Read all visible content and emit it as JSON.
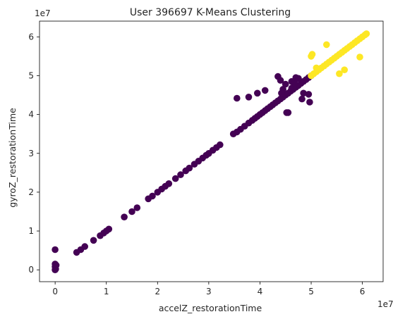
{
  "chart_data": {
    "type": "scatter",
    "title": "User 396697 K-Means Clustering",
    "xlabel": "accelZ_restorationTime",
    "ylabel": "gyroZ_restorationTime",
    "x_offset_label": "1e7",
    "y_offset_label": "1e7",
    "xlim": [
      -0.305,
      6.405
    ],
    "ylim": [
      -0.305,
      6.405
    ],
    "xticks": [
      0,
      1,
      2,
      3,
      4,
      5,
      6
    ],
    "yticks": [
      0,
      1,
      2,
      3,
      4,
      5,
      6
    ],
    "grid": false,
    "units_scale": "1e7",
    "series": [
      {
        "color": "#440154",
        "points": [
          [
            0,
            0
          ],
          [
            0.01,
            0.02
          ],
          [
            0.0,
            0.08
          ],
          [
            0.02,
            0.12
          ],
          [
            0.0,
            0.15
          ],
          [
            0.0,
            0.52
          ],
          [
            0.42,
            0.45
          ],
          [
            0.5,
            0.52
          ],
          [
            0.58,
            0.6
          ],
          [
            0.75,
            0.76
          ],
          [
            0.88,
            0.88
          ],
          [
            0.95,
            0.95
          ],
          [
            1.0,
            1.0
          ],
          [
            1.05,
            1.05
          ],
          [
            1.35,
            1.36
          ],
          [
            1.5,
            1.5
          ],
          [
            1.6,
            1.6
          ],
          [
            1.82,
            1.83
          ],
          [
            1.9,
            1.9
          ],
          [
            2.0,
            2.0
          ],
          [
            2.08,
            2.08
          ],
          [
            2.15,
            2.15
          ],
          [
            2.22,
            2.22
          ],
          [
            2.35,
            2.35
          ],
          [
            2.45,
            2.45
          ],
          [
            2.55,
            2.55
          ],
          [
            2.62,
            2.62
          ],
          [
            2.72,
            2.72
          ],
          [
            2.8,
            2.8
          ],
          [
            2.88,
            2.88
          ],
          [
            2.95,
            2.95
          ],
          [
            3.0,
            3.0
          ],
          [
            3.08,
            3.08
          ],
          [
            3.15,
            3.15
          ],
          [
            3.22,
            3.22
          ],
          [
            3.48,
            3.5
          ],
          [
            3.55,
            3.55
          ],
          [
            3.62,
            3.62
          ],
          [
            3.7,
            3.7
          ],
          [
            3.78,
            3.78
          ],
          [
            3.85,
            3.85
          ],
          [
            3.9,
            3.9
          ],
          [
            3.95,
            3.95
          ],
          [
            4.0,
            4.0
          ],
          [
            4.05,
            4.05
          ],
          [
            4.1,
            4.1
          ],
          [
            4.15,
            4.15
          ],
          [
            4.2,
            4.2
          ],
          [
            4.25,
            4.25
          ],
          [
            4.3,
            4.3
          ],
          [
            4.35,
            4.35
          ],
          [
            4.4,
            4.4
          ],
          [
            4.45,
            4.45
          ],
          [
            4.5,
            4.5
          ],
          [
            4.55,
            4.55
          ],
          [
            4.6,
            4.6
          ],
          [
            4.65,
            4.65
          ],
          [
            4.7,
            4.7
          ],
          [
            4.75,
            4.75
          ],
          [
            4.8,
            4.8
          ],
          [
            4.85,
            4.85
          ],
          [
            4.9,
            4.9
          ],
          [
            4.95,
            4.95
          ],
          [
            5.0,
            5.0
          ],
          [
            3.55,
            4.42
          ],
          [
            3.78,
            4.45
          ],
          [
            3.95,
            4.55
          ],
          [
            4.1,
            4.62
          ],
          [
            4.35,
            4.98
          ],
          [
            4.4,
            4.88
          ],
          [
            4.42,
            4.55
          ],
          [
            4.45,
            4.65
          ],
          [
            4.5,
            4.78
          ],
          [
            4.52,
            4.05
          ],
          [
            4.55,
            4.05
          ],
          [
            4.62,
            4.68
          ],
          [
            4.62,
            4.85
          ],
          [
            4.65,
            4.7
          ],
          [
            4.68,
            4.8
          ],
          [
            4.82,
            4.4
          ],
          [
            4.85,
            4.55
          ],
          [
            4.95,
            4.52
          ],
          [
            4.97,
            4.32
          ],
          [
            4.7,
            4.95
          ],
          [
            4.75,
            4.93
          ]
        ]
      },
      {
        "color": "#fde725",
        "points": [
          [
            5.0,
            5.5
          ],
          [
            5.02,
            5.55
          ],
          [
            5.1,
            5.2
          ],
          [
            5.3,
            5.8
          ],
          [
            5.55,
            5.05
          ],
          [
            5.65,
            5.15
          ],
          [
            5.95,
            5.48
          ],
          [
            5.0,
            5.0
          ],
          [
            5.05,
            5.05
          ],
          [
            5.1,
            5.1
          ],
          [
            5.15,
            5.15
          ],
          [
            5.2,
            5.2
          ],
          [
            5.25,
            5.25
          ],
          [
            5.3,
            5.3
          ],
          [
            5.35,
            5.35
          ],
          [
            5.4,
            5.4
          ],
          [
            5.45,
            5.45
          ],
          [
            5.5,
            5.5
          ],
          [
            5.55,
            5.55
          ],
          [
            5.6,
            5.6
          ],
          [
            5.65,
            5.65
          ],
          [
            5.7,
            5.7
          ],
          [
            5.75,
            5.75
          ],
          [
            5.8,
            5.8
          ],
          [
            5.85,
            5.85
          ],
          [
            5.9,
            5.9
          ],
          [
            5.95,
            5.95
          ],
          [
            6.0,
            6.0
          ],
          [
            6.05,
            6.05
          ],
          [
            6.08,
            6.08
          ]
        ]
      }
    ]
  }
}
